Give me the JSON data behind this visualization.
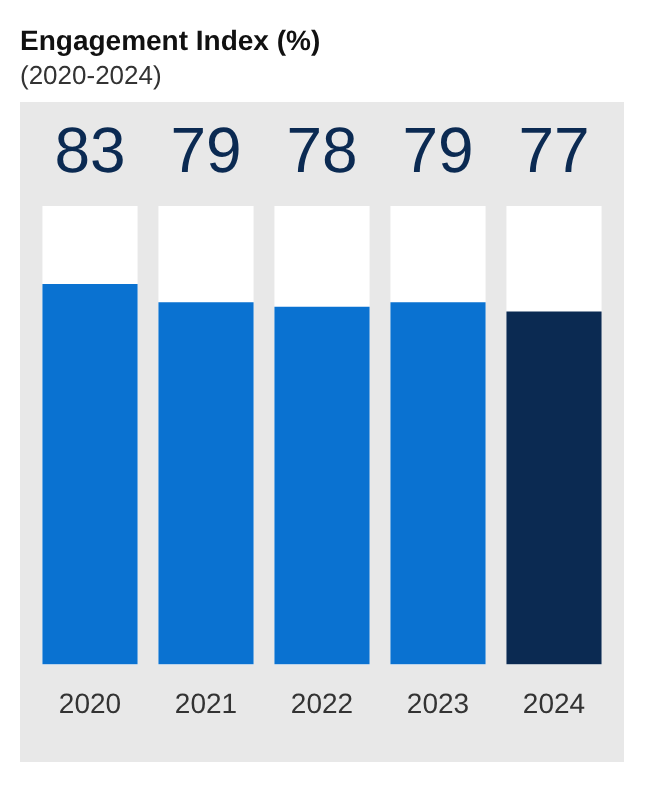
{
  "chart_data": {
    "type": "bar",
    "title": "Engagement Index (%)",
    "subtitle": "(2020-2024)",
    "categories": [
      "2020",
      "2021",
      "2022",
      "2023",
      "2024"
    ],
    "values": [
      83,
      79,
      78,
      79,
      77
    ],
    "colors": [
      "#0a72d1",
      "#0a72d1",
      "#0a72d1",
      "#0a72d1",
      "#0b2a52"
    ],
    "ylim": [
      0,
      100
    ],
    "tick_labels": "x",
    "data_labels": true
  }
}
